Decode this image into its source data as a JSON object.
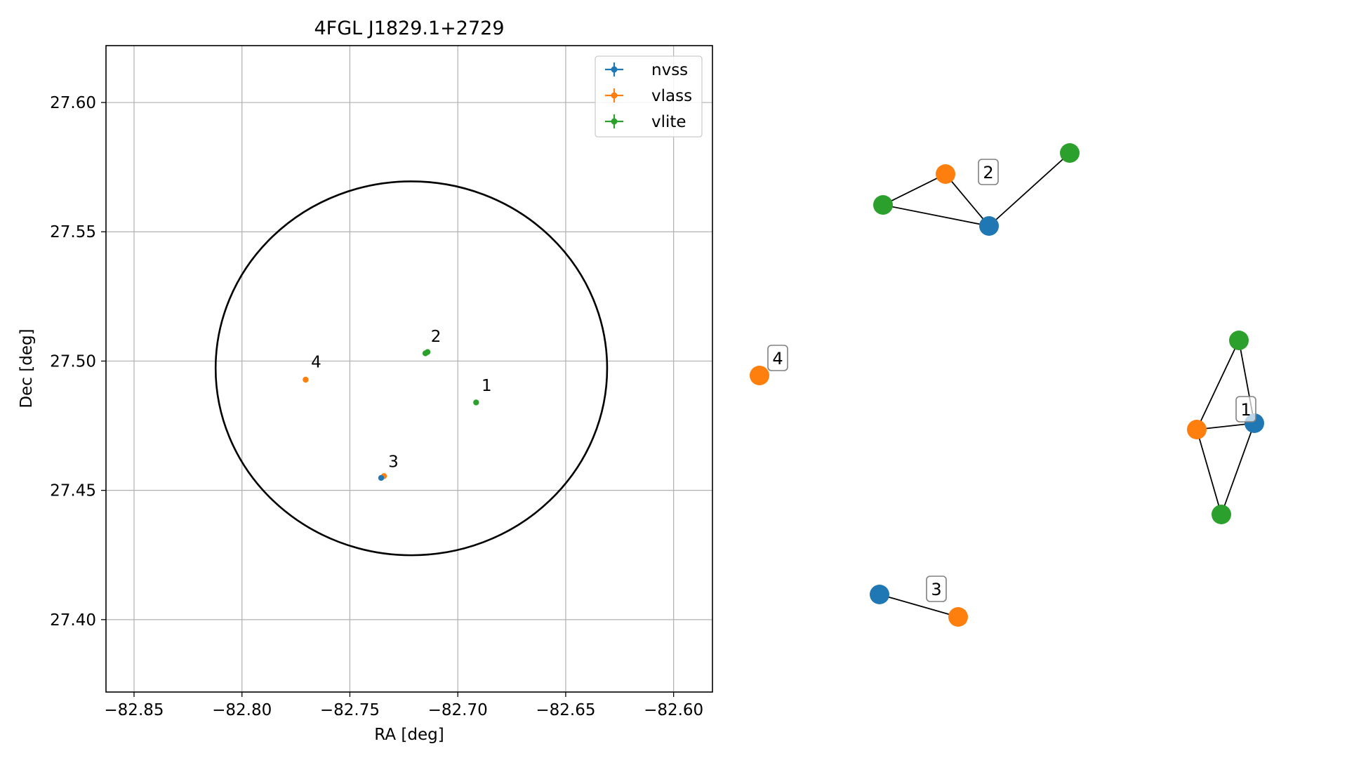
{
  "chart_data": [
    {
      "type": "scatter",
      "title": "4FGL J1829.1+2729",
      "xlabel": "RA [deg]",
      "ylabel": "Dec [deg]",
      "xlim": [
        -82.863,
        -82.582
      ],
      "ylim": [
        27.372,
        27.622
      ],
      "xticks": [
        -82.85,
        -82.8,
        -82.75,
        -82.7,
        -82.65,
        -82.6
      ],
      "xtick_labels": [
        "−82.85",
        "−82.80",
        "−82.75",
        "−82.70",
        "−82.65",
        "−82.60"
      ],
      "yticks": [
        27.4,
        27.45,
        27.5,
        27.55,
        27.6
      ],
      "ytick_labels": [
        "27.40",
        "27.45",
        "27.50",
        "27.55",
        "27.60"
      ],
      "grid": true,
      "legend_position": "top-right",
      "colors": {
        "nvss": "#1f77b4",
        "vlass": "#ff7f0e",
        "vlite": "#2ca02c",
        "ellipse": "#000000"
      },
      "series": [
        {
          "name": "nvss",
          "points": [
            {
              "x": -82.7355,
              "y": 27.4548
            }
          ]
        },
        {
          "name": "vlass",
          "points": [
            {
              "x": -82.7705,
              "y": 27.4928
            },
            {
              "x": -82.7342,
              "y": 27.4555
            }
          ]
        },
        {
          "name": "vlite",
          "points": [
            {
              "x": -82.6915,
              "y": 27.484
            },
            {
              "x": -82.715,
              "y": 27.503
            },
            {
              "x": -82.714,
              "y": 27.5035
            }
          ]
        }
      ],
      "annotations": [
        {
          "text": "1",
          "x": -82.689,
          "y": 27.4885
        },
        {
          "text": "2",
          "x": -82.7125,
          "y": 27.5075
        },
        {
          "text": "3",
          "x": -82.7322,
          "y": 27.459
        },
        {
          "text": "4",
          "x": -82.768,
          "y": 27.4975
        }
      ],
      "ellipse": {
        "center": [
          -82.7215,
          27.4972
        ],
        "semi_axis_ra": 0.0907,
        "semi_axis_dec": 0.0723
      }
    },
    {
      "type": "network",
      "group_labels": [
        "1",
        "2",
        "3",
        "4"
      ],
      "colors": {
        "nvss": "#1f77b4",
        "vlass": "#ff7f0e",
        "vlite": "#2ca02c"
      },
      "nodes": [
        {
          "id": "n2",
          "survey": "nvss"
        },
        {
          "id": "o2",
          "survey": "vlass"
        },
        {
          "id": "g2a",
          "survey": "vlite"
        },
        {
          "id": "g2b",
          "survey": "vlite"
        },
        {
          "id": "o4",
          "survey": "vlass"
        },
        {
          "id": "g1a",
          "survey": "vlite"
        },
        {
          "id": "o1",
          "survey": "vlass"
        },
        {
          "id": "n1",
          "survey": "nvss"
        },
        {
          "id": "g1b",
          "survey": "vlite"
        },
        {
          "id": "n3",
          "survey": "nvss"
        },
        {
          "id": "o3",
          "survey": "vlass"
        }
      ],
      "edges": [
        [
          "g2a",
          "o2"
        ],
        [
          "g2a",
          "n2"
        ],
        [
          "o2",
          "n2"
        ],
        [
          "n2",
          "g2b"
        ],
        [
          "o1",
          "g1a"
        ],
        [
          "o1",
          "n1"
        ],
        [
          "o1",
          "g1b"
        ],
        [
          "g1a",
          "n1"
        ],
        [
          "n1",
          "g1b"
        ],
        [
          "n3",
          "o3"
        ]
      ]
    }
  ]
}
